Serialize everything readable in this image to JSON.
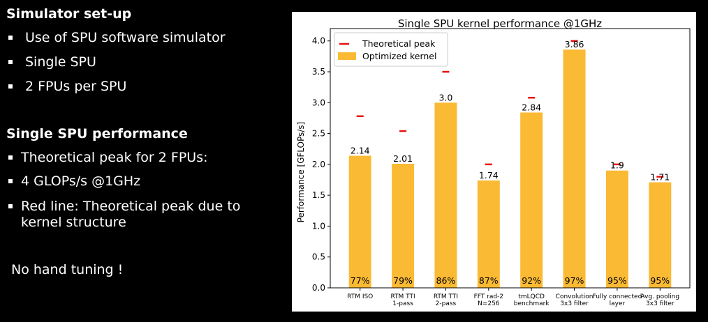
{
  "slide": {
    "section1": {
      "heading": "Simulator set-up",
      "bullets": [
        "Use of SPU software simulator",
        "Single SPU",
        "2 FPUs per SPU"
      ]
    },
    "section2": {
      "heading": "Single SPU performance",
      "bullets": [
        "Theoretical peak for 2 FPUs:",
        "4 GLOPs/s @1GHz",
        "Red line: Theoretical peak due to",
        "kernel structure"
      ]
    },
    "note": "No hand tuning !"
  },
  "colors": {
    "bar": "#FBBA34",
    "peak": "#E8100F",
    "background": "#000000",
    "text": "#FFFFFF"
  },
  "chart_data": {
    "type": "bar",
    "title": "Single SPU kernel performance @1GHz",
    "ylabel": "Performance [GFLOPs/s]",
    "xlabel": "",
    "ylim": [
      0,
      4.2
    ],
    "yticks": [
      "0.0",
      "0.5",
      "1.0",
      "1.5",
      "2.0",
      "2.5",
      "3.0",
      "3.5",
      "4.0"
    ],
    "categories": [
      [
        "RTM ISO"
      ],
      [
        "RTM TTI",
        "1-pass"
      ],
      [
        "RTM TTI",
        "2-pass"
      ],
      [
        "FFT rad-2",
        "N=256"
      ],
      [
        "tmLQCD",
        "benchmark"
      ],
      [
        "Convolution",
        "3x3 filter"
      ],
      [
        "Fully connected",
        "layer"
      ],
      [
        "Avg. pooling",
        "3x3 filter"
      ]
    ],
    "series": [
      {
        "name": "Optimized kernel",
        "type": "bar",
        "values": [
          2.14,
          2.01,
          3.0,
          1.74,
          2.84,
          3.86,
          1.9,
          1.71
        ],
        "labels": [
          "2.14",
          "2.01",
          "3.0",
          "1.74",
          "2.84",
          "3.86",
          "1.9",
          "1.71"
        ]
      },
      {
        "name": "Theoretical peak",
        "type": "marker",
        "values": [
          2.78,
          2.54,
          3.5,
          2.0,
          3.08,
          4.0,
          2.0,
          1.8
        ]
      }
    ],
    "percent_labels": [
      "77%",
      "79%",
      "86%",
      "87%",
      "92%",
      "97%",
      "95%",
      "95%"
    ],
    "legend": {
      "position": "top-left",
      "entries": [
        "Theoretical peak",
        "Optimized kernel"
      ]
    },
    "grid": false
  }
}
